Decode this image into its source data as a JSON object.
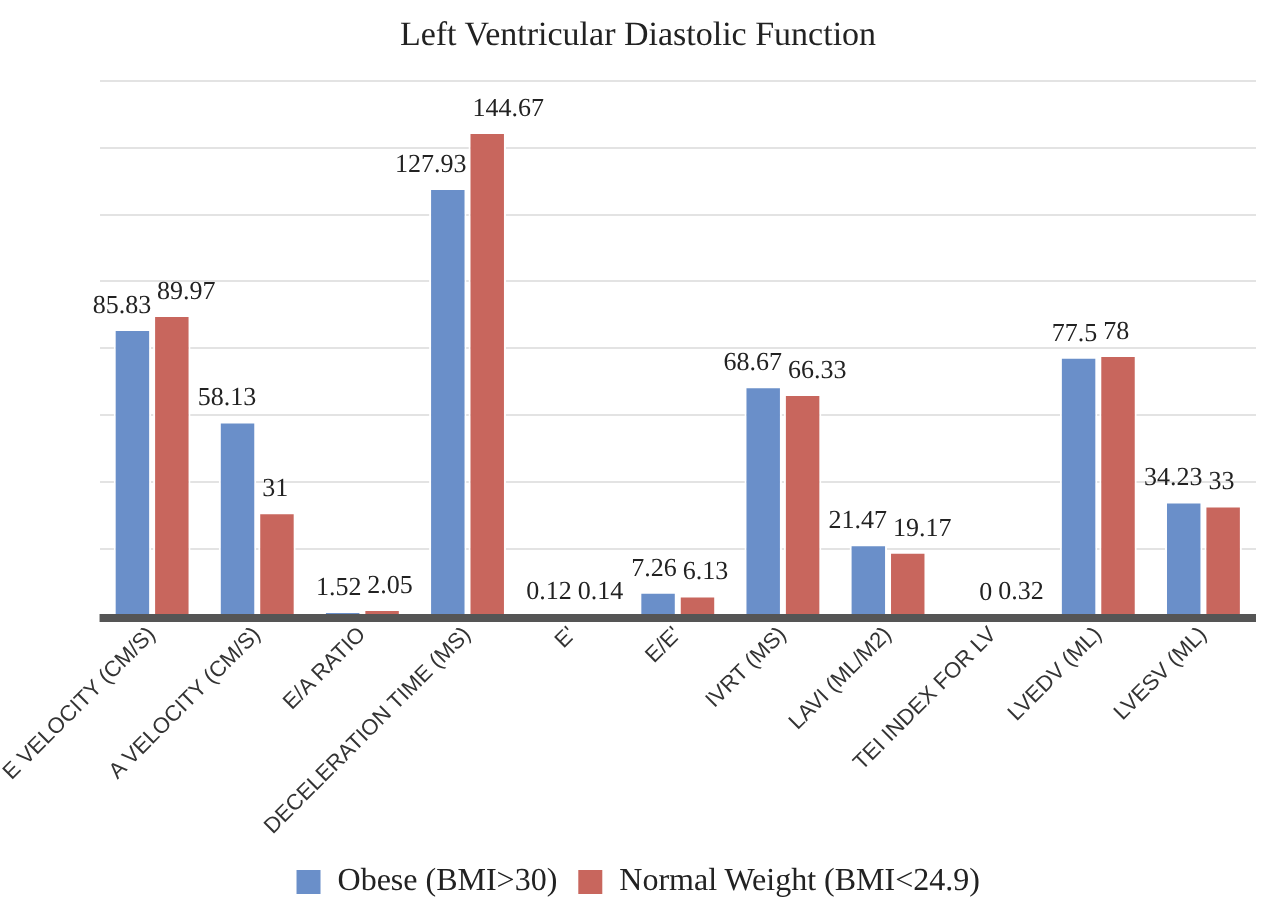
{
  "chart_data": {
    "type": "bar",
    "title": "Left Ventricular Diastolic Function",
    "categories": [
      "E VELOCITY (CM/S)",
      "A VELOCITY (CM/S)",
      "E/A RATIO",
      "DECELERATION TIME (MS)",
      "E'",
      "E/E'",
      "IVRT (MS)",
      "LAVI (ML/M2)",
      "TEI INDEX FOR LV",
      "LVEDV (ML)",
      "LVESV (ML)"
    ],
    "series": [
      {
        "name": "Obese (BMI>30)",
        "color": "#6a8fc9",
        "values": [
          85.83,
          58.13,
          1.52,
          127.93,
          0.12,
          7.26,
          68.67,
          21.47,
          0,
          77.5,
          34.23
        ]
      },
      {
        "name": "Normal Weight (BMI<24.9)",
        "color": "#c8665d",
        "values": [
          89.97,
          31,
          2.05,
          144.67,
          0.14,
          6.13,
          66.33,
          19.17,
          0.32,
          78,
          33
        ]
      }
    ],
    "grid": "y",
    "legend": "bottom",
    "data_labels": true,
    "tick_labels": "x"
  }
}
